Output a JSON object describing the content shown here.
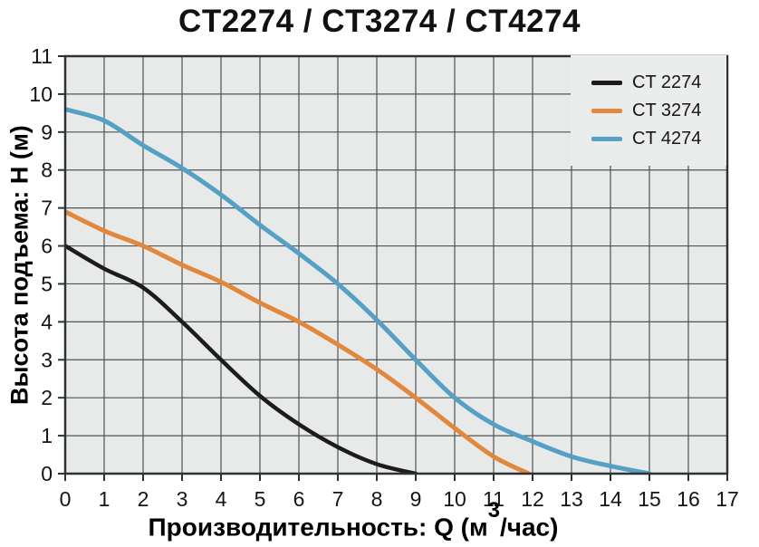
{
  "title": "CT2274 / CT3274 / CT4274",
  "y_axis": {
    "label": "Высота подъема: Н (м)"
  },
  "x_axis": {
    "label_prefix": "Производительность: Q (м",
    "label_sup": "3",
    "label_suffix": "/час)"
  },
  "legend": {
    "items": [
      {
        "label": "CT 2274",
        "color": "#1c1c1c"
      },
      {
        "label": "CT 3274",
        "color": "#e2883c"
      },
      {
        "label": "CT 4274",
        "color": "#55a0c4"
      }
    ]
  },
  "chart_data": {
    "type": "line",
    "title": "CT2274 / CT3274 / CT4274",
    "xlabel": "Производительность: Q (м3/час)",
    "ylabel": "Высота подъема: Н (м)",
    "xlim": [
      0,
      17
    ],
    "ylim": [
      0,
      11
    ],
    "x_ticks": [
      0,
      1,
      2,
      3,
      4,
      5,
      6,
      7,
      8,
      9,
      10,
      11,
      12,
      13,
      14,
      15,
      16,
      17
    ],
    "y_ticks": [
      0,
      1,
      2,
      3,
      4,
      5,
      6,
      7,
      8,
      9,
      10,
      11
    ],
    "grid": true,
    "legend_position": "top-right",
    "background": "#e8eae9",
    "gridline_color": "#4e5356",
    "axis_color": "#2f3234",
    "series": [
      {
        "name": "CT 2274",
        "color": "#1c1c1c",
        "stroke_width": 4.5,
        "points": [
          [
            0,
            6.0
          ],
          [
            1,
            5.4
          ],
          [
            2,
            4.9
          ],
          [
            3,
            4.0
          ],
          [
            4,
            3.0
          ],
          [
            5,
            2.05
          ],
          [
            6,
            1.3
          ],
          [
            7,
            0.7
          ],
          [
            8,
            0.25
          ],
          [
            9,
            0
          ]
        ]
      },
      {
        "name": "CT 3274",
        "color": "#e2883c",
        "stroke_width": 5,
        "points": [
          [
            0,
            6.9
          ],
          [
            1,
            6.4
          ],
          [
            2,
            6.0
          ],
          [
            3,
            5.5
          ],
          [
            4,
            5.05
          ],
          [
            5,
            4.5
          ],
          [
            6,
            4.0
          ],
          [
            7,
            3.4
          ],
          [
            8,
            2.75
          ],
          [
            9,
            2.0
          ],
          [
            10,
            1.2
          ],
          [
            11,
            0.45
          ],
          [
            11.9,
            0
          ]
        ]
      },
      {
        "name": "CT 4274",
        "color": "#55a0c4",
        "stroke_width": 5,
        "points": [
          [
            0,
            9.6
          ],
          [
            1,
            9.3
          ],
          [
            2,
            8.65
          ],
          [
            3,
            8.05
          ],
          [
            4,
            7.35
          ],
          [
            5,
            6.55
          ],
          [
            6,
            5.8
          ],
          [
            7,
            5.0
          ],
          [
            8,
            4.05
          ],
          [
            9,
            3.0
          ],
          [
            10,
            2.0
          ],
          [
            11,
            1.3
          ],
          [
            12,
            0.85
          ],
          [
            13,
            0.45
          ],
          [
            14,
            0.2
          ],
          [
            15,
            0
          ]
        ]
      }
    ]
  }
}
